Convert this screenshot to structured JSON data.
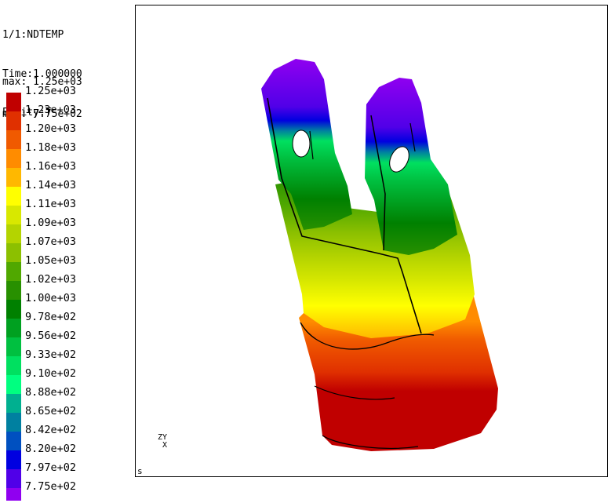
{
  "header": {
    "step": "1/1:NDTEMP",
    "time": "Time:1.000000",
    "entity": "Entity:T"
  },
  "range": {
    "max": "max: 1.25e+03",
    "min": "min: 7.75e+02"
  },
  "legend": [
    {
      "label": "1.25e+03",
      "color": "#c00000"
    },
    {
      "label": "1.23e+03",
      "color": "#e03000"
    },
    {
      "label": "1.20e+03",
      "color": "#f05a00"
    },
    {
      "label": "1.18e+03",
      "color": "#ff8c00"
    },
    {
      "label": "1.16e+03",
      "color": "#ffb800"
    },
    {
      "label": "1.14e+03",
      "color": "#ffff00"
    },
    {
      "label": "1.11e+03",
      "color": "#d8e800"
    },
    {
      "label": "1.09e+03",
      "color": "#b4d400"
    },
    {
      "label": "1.07e+03",
      "color": "#8cc000"
    },
    {
      "label": "1.05e+03",
      "color": "#50a800"
    },
    {
      "label": "1.02e+03",
      "color": "#289000"
    },
    {
      "label": "1.00e+03",
      "color": "#008000"
    },
    {
      "label": "9.78e+02",
      "color": "#00a020"
    },
    {
      "label": "9.56e+02",
      "color": "#00c040"
    },
    {
      "label": "9.33e+02",
      "color": "#00e060"
    },
    {
      "label": "9.10e+02",
      "color": "#00ff80"
    },
    {
      "label": "8.88e+02",
      "color": "#00b090"
    },
    {
      "label": "8.65e+02",
      "color": "#0080a0"
    },
    {
      "label": "8.42e+02",
      "color": "#0050c0"
    },
    {
      "label": "8.20e+02",
      "color": "#0000e0"
    },
    {
      "label": "7.97e+02",
      "color": "#5000e8"
    },
    {
      "label": "7.75e+02",
      "color": "#9000f0"
    }
  ],
  "viewport": {
    "triad_z": "Z",
    "triad_y": "Y",
    "triad_x": "X",
    "corner_label": "s"
  }
}
